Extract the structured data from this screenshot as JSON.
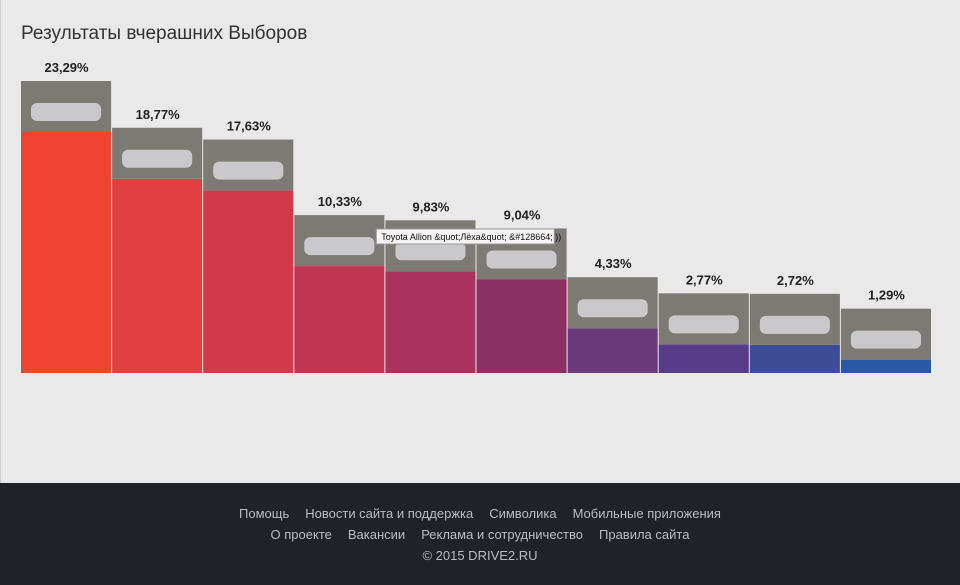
{
  "chart_data": {
    "type": "bar",
    "title": "Результаты вчерашних Выборов",
    "values": [
      23.29,
      18.77,
      17.63,
      10.33,
      9.83,
      9.04,
      4.33,
      2.77,
      2.72,
      1.29
    ],
    "value_labels": [
      "23,29%",
      "18,77%",
      "17,63%",
      "10,33%",
      "9,83%",
      "9,04%",
      "4,33%",
      "2,77%",
      "2,72%",
      "1,29%"
    ],
    "colors": [
      "#ef4530",
      "#e04140",
      "#d2394a",
      "#c23552",
      "#a9335c",
      "#8c2f63",
      "#6b3a7a",
      "#573d88",
      "#3d4c96",
      "#2b58a4"
    ],
    "tooltip": "Toyota Allion &quot;Лёха&quot; &#128664; ))"
  },
  "footer": {
    "links": [
      [
        "Помощь",
        "Новости сайта и поддержка",
        "Символика",
        "Мобильные приложения"
      ],
      [
        "О проекте",
        "Вакансии",
        "Реклама и сотрудничество",
        "Правила сайта"
      ]
    ],
    "copyright": "© 2015 DRIVE2.RU"
  }
}
